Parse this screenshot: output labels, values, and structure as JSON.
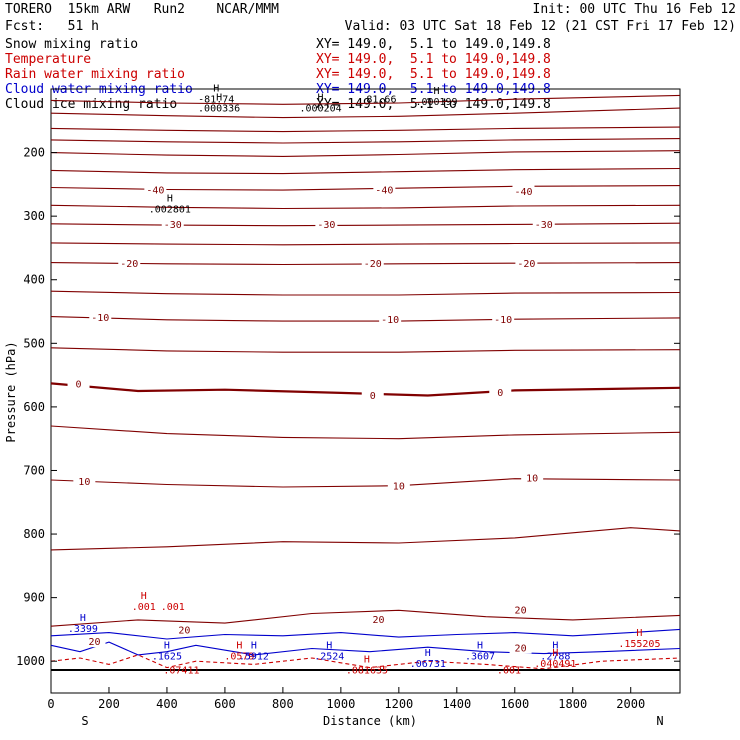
{
  "header": {
    "model_line": "TORERO  15km ARW   Run2    NCAR/MMM",
    "fcst_line": "Fcst:   51 h",
    "init_line": "Init: 00 UTC Thu 16 Feb 12",
    "valid_line": "Valid: 03 UTC Sat 18 Feb 12 (21 CST Fri 17 Feb 12)"
  },
  "fields": [
    {
      "name": "Snow mixing ratio",
      "xy": "",
      "color": "#000000"
    },
    {
      "name": "Temperature",
      "xy": "XY= 149.0,  5.1 to 149.0,149.8",
      "color": "#cc0000"
    },
    {
      "name": "Rain water mixing ratio",
      "xy": "XY= 149.0,  5.1 to 149.0,149.8",
      "color": "#cc0000"
    },
    {
      "name": "Cloud water mixing ratio",
      "xy": "XY= 149.0,  5.1 to 149.0,149.8",
      "color": "#0000cc"
    },
    {
      "name": "Cloud ice mixing ratio",
      "xy": "XY= 149.0,  5.1 to 149.0,149.8",
      "color": "#000000"
    }
  ],
  "snow_xy": "XY= 149.0,  5.1 to 149.0,149.8",
  "chart_data": {
    "type": "line",
    "title": "",
    "xlabel": "Distance (km)",
    "ylabel": "Pressure (hPa)",
    "xlim": [
      0,
      2170
    ],
    "ylim": [
      1050,
      100
    ],
    "x_ticks": [
      0,
      200,
      400,
      600,
      800,
      1000,
      1200,
      1400,
      1600,
      1800,
      2000
    ],
    "y_ticks": [
      200,
      300,
      400,
      500,
      600,
      700,
      800,
      900,
      1000
    ],
    "x_end_labels": {
      "left": "S",
      "right": "N"
    },
    "temperature_contour_labels": [
      {
        "text": "-40",
        "x": 360,
        "p": 260
      },
      {
        "text": "-40",
        "x": 1150,
        "p": 260
      },
      {
        "text": "-40",
        "x": 1630,
        "p": 262
      },
      {
        "text": "-30",
        "x": 420,
        "p": 314
      },
      {
        "text": "-30",
        "x": 950,
        "p": 314
      },
      {
        "text": "-30",
        "x": 1700,
        "p": 314
      },
      {
        "text": "-20",
        "x": 270,
        "p": 375
      },
      {
        "text": "-20",
        "x": 1110,
        "p": 375
      },
      {
        "text": "-20",
        "x": 1640,
        "p": 375
      },
      {
        "text": "-10",
        "x": 170,
        "p": 460
      },
      {
        "text": "-10",
        "x": 1170,
        "p": 463
      },
      {
        "text": "-10",
        "x": 1560,
        "p": 463
      },
      {
        "text": "0",
        "x": 95,
        "p": 565
      },
      {
        "text": "0",
        "x": 1110,
        "p": 583
      },
      {
        "text": "0",
        "x": 1550,
        "p": 578
      },
      {
        "text": "10",
        "x": 115,
        "p": 718
      },
      {
        "text": "10",
        "x": 1200,
        "p": 725
      },
      {
        "text": "10",
        "x": 1660,
        "p": 713
      },
      {
        "text": "20",
        "x": 1130,
        "p": 935
      },
      {
        "text": "20",
        "x": 460,
        "p": 952
      },
      {
        "text": "20",
        "x": 150,
        "p": 970
      },
      {
        "text": "20",
        "x": 1620,
        "p": 920
      },
      {
        "text": "20",
        "x": 1620,
        "p": 980
      }
    ],
    "extrema_labels": [
      {
        "kind": "H",
        "value": "-81.74",
        "x": 570,
        "p": 112,
        "color": "#000000"
      },
      {
        "kind": "H",
        "value": ".000336",
        "x": 580,
        "p": 126,
        "color": "#000000"
      },
      {
        "kind": "H",
        "value": ".000204",
        "x": 930,
        "p": 126,
        "color": "#000000"
      },
      {
        "kind": "H",
        "value": ".000199",
        "x": 1330,
        "p": 116,
        "color": "#000000"
      },
      {
        "kind": "",
        "value": "81.66",
        "x": 1140,
        "p": 112,
        "color": "#000000"
      },
      {
        "kind": "H",
        "value": ".002801",
        "x": 410,
        "p": 285,
        "color": "#000000"
      },
      {
        "kind": "H",
        "value": ".001",
        "x": 320,
        "p": 910,
        "color": "#cc0000"
      },
      {
        "kind": "",
        "value": ".001",
        "x": 420,
        "p": 910,
        "color": "#cc0000"
      },
      {
        "kind": "H",
        "value": ".3399",
        "x": 110,
        "p": 945,
        "color": "#0000cc"
      },
      {
        "kind": "H",
        "value": ".1625",
        "x": 400,
        "p": 988,
        "color": "#0000cc"
      },
      {
        "kind": "",
        "value": ".07411",
        "x": 450,
        "p": 1010,
        "color": "#cc0000"
      },
      {
        "kind": "H",
        "value": ".0579",
        "x": 650,
        "p": 988,
        "color": "#cc0000"
      },
      {
        "kind": "H",
        "value": ".5912",
        "x": 700,
        "p": 988,
        "color": "#0000cc"
      },
      {
        "kind": "H",
        "value": ".2524",
        "x": 960,
        "p": 988,
        "color": "#0000cc"
      },
      {
        "kind": "H",
        "value": ".081635",
        "x": 1090,
        "p": 1010,
        "color": "#cc0000"
      },
      {
        "kind": "H",
        "value": ".06731",
        "x": 1300,
        "p": 1000,
        "color": "#0000cc"
      },
      {
        "kind": "H",
        "value": ".3607",
        "x": 1480,
        "p": 988,
        "color": "#0000cc"
      },
      {
        "kind": "H",
        "value": ".2788",
        "x": 1740,
        "p": 988,
        "color": "#0000cc"
      },
      {
        "kind": "H",
        "value": ".040491",
        "x": 1740,
        "p": 1000,
        "color": "#cc0000"
      },
      {
        "kind": "H",
        "value": ".155205",
        "x": 2030,
        "p": 968,
        "color": "#cc0000"
      },
      {
        "kind": "",
        "value": ".001",
        "x": 1580,
        "p": 1010,
        "color": "#cc0000"
      }
    ],
    "series": [
      {
        "name": "Temperature",
        "color": "#800000",
        "lines": [
          {
            "level": -50,
            "x": [
              0,
              400,
              800,
              1200,
              1600,
              2170
            ],
            "p": [
              162,
              165,
              167,
              165,
              162,
              160
            ]
          },
          {
            "level": -50,
            "x": [
              0,
              400,
              800,
              1200,
              1600,
              2170
            ],
            "p": [
              138,
              142,
              145,
              143,
              138,
              130
            ]
          },
          {
            "level": -50,
            "x": [
              0,
              400,
              800,
              1200,
              1600,
              2170
            ],
            "p": [
              118,
              122,
              124,
              122,
              116,
              110
            ]
          },
          {
            "level": -40,
            "x": [
              0,
              400,
              800,
              1200,
              1600,
              2170
            ],
            "p": [
              255,
              258,
              259,
              256,
              253,
              252
            ]
          },
          {
            "level": -45,
            "x": [
              0,
              400,
              800,
              1200,
              1600,
              2170
            ],
            "p": [
              228,
              232,
              233,
              230,
              227,
              225
            ]
          },
          {
            "level": -45,
            "x": [
              0,
              400,
              800,
              1200,
              1600,
              2170
            ],
            "p": [
              200,
              204,
              206,
              203,
              199,
              197
            ]
          },
          {
            "level": -45,
            "x": [
              0,
              400,
              800,
              1200,
              1600,
              2170
            ],
            "p": [
              180,
              183,
              185,
              183,
              180,
              178
            ]
          },
          {
            "level": -35,
            "x": [
              0,
              400,
              800,
              1200,
              1600,
              2170
            ],
            "p": [
              283,
              286,
              288,
              287,
              284,
              283
            ]
          },
          {
            "level": -30,
            "x": [
              0,
              400,
              800,
              1200,
              1600,
              2170
            ],
            "p": [
              312,
              314,
              315,
              314,
              313,
              311
            ]
          },
          {
            "level": -25,
            "x": [
              0,
              400,
              800,
              1200,
              1600,
              2170
            ],
            "p": [
              342,
              344,
              345,
              344,
              343,
              342
            ]
          },
          {
            "level": -20,
            "x": [
              0,
              400,
              800,
              1200,
              1600,
              2170
            ],
            "p": [
              373,
              375,
              376,
              375,
              374,
              373
            ]
          },
          {
            "level": -15,
            "x": [
              0,
              400,
              800,
              1200,
              1600,
              2170
            ],
            "p": [
              418,
              422,
              424,
              424,
              421,
              420
            ]
          },
          {
            "level": -10,
            "x": [
              0,
              400,
              800,
              1200,
              1600,
              2170
            ],
            "p": [
              458,
              463,
              465,
              465,
              462,
              460
            ]
          },
          {
            "level": -5,
            "x": [
              0,
              400,
              800,
              1200,
              1600,
              2170
            ],
            "p": [
              507,
              512,
              514,
              514,
              511,
              510
            ]
          },
          {
            "level": 0,
            "x": [
              0,
              300,
              600,
              1000,
              1300,
              1600,
              2170
            ],
            "p": [
              563,
              575,
              573,
              578,
              582,
              574,
              570
            ]
          },
          {
            "level": 5,
            "x": [
              0,
              400,
              800,
              1200,
              1600,
              2170
            ],
            "p": [
              630,
              642,
              648,
              650,
              644,
              640
            ]
          },
          {
            "level": 10,
            "x": [
              0,
              400,
              800,
              1200,
              1600,
              2170
            ],
            "p": [
              715,
              722,
              726,
              724,
              713,
              715
            ]
          },
          {
            "level": 15,
            "x": [
              0,
              400,
              800,
              1200,
              1600,
              2000,
              2170
            ],
            "p": [
              825,
              820,
              812,
              814,
              806,
              790,
              795
            ]
          },
          {
            "level": 20,
            "x": [
              0,
              300,
              600,
              900,
              1200,
              1500,
              1800,
              2170
            ],
            "p": [
              945,
              935,
              940,
              925,
              920,
              930,
              935,
              928
            ]
          }
        ]
      },
      {
        "name": "Cloud water mixing ratio",
        "color": "#0000cc",
        "lines": [
          {
            "level": 0.001,
            "x": [
              0,
              100,
              200,
              300,
              400,
              500,
              700,
              900,
              1100,
              1300,
              1500,
              1700,
              1900,
              2170
            ],
            "p": [
              975,
              985,
              970,
              990,
              985,
              975,
              990,
              980,
              985,
              978,
              985,
              988,
              985,
              980
            ]
          },
          {
            "level": 0.001,
            "x": [
              0,
              200,
              400,
              600,
              800,
              1000,
              1200,
              1400,
              1600,
              1800,
              2000,
              2170
            ],
            "p": [
              960,
              955,
              965,
              958,
              960,
              955,
              962,
              958,
              955,
              960,
              955,
              950
            ]
          }
        ]
      },
      {
        "name": "Rain water mixing ratio",
        "color": "#cc0000",
        "lines": [
          {
            "level": 0.001,
            "x": [
              0,
              100,
              200,
              300,
              400,
              500,
              700,
              900,
              1100,
              1300,
              1500,
              1700,
              1900,
              2170
            ],
            "p": [
              1000,
              995,
              1005,
              990,
              1010,
              1000,
              1005,
              995,
              1010,
              1000,
              1005,
              1012,
              1000,
              995
            ]
          }
        ]
      }
    ]
  }
}
